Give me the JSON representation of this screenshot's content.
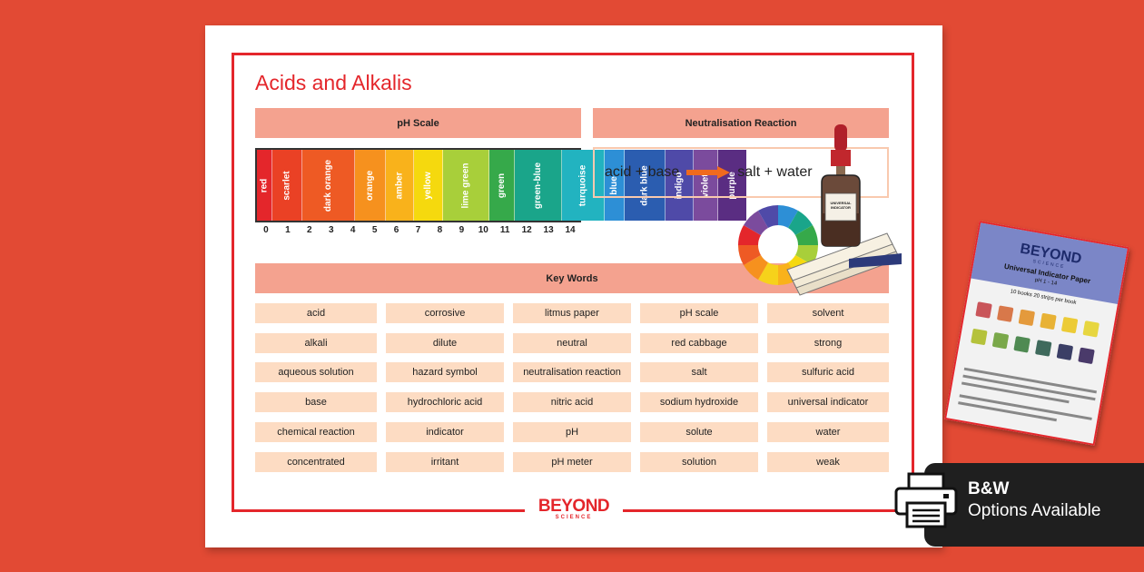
{
  "title": "Acids and Alkalis",
  "sections": {
    "ph_scale": "pH Scale",
    "neutralisation": "Neutralisation Reaction",
    "key_words": "Key Words"
  },
  "ph_scale": [
    {
      "label": "red",
      "num": "0",
      "color": "#e4262b"
    },
    {
      "label": "scarlet",
      "num": "1",
      "color": "#ea4125"
    },
    {
      "label": "dark orange",
      "num": "2",
      "color": "#ee5a24"
    },
    {
      "label": "orange",
      "num": "3",
      "color": "#f6911e"
    },
    {
      "label": "amber",
      "num": "4",
      "color": "#f9b21b"
    },
    {
      "label": "yellow",
      "num": "5",
      "color": "#f5d90e"
    },
    {
      "label": "lime green",
      "num": "6",
      "color": "#a8cf3a"
    },
    {
      "label": "green",
      "num": "7",
      "color": "#36a94a"
    },
    {
      "label": "green-blue",
      "num": "8",
      "color": "#1aa58a"
    },
    {
      "label": "turquoise",
      "num": "9",
      "color": "#22b3c0"
    },
    {
      "label": "blue",
      "num": "10",
      "color": "#2d8fd6"
    },
    {
      "label": "dark blue",
      "num": "11",
      "color": "#2b5db0"
    },
    {
      "label": "indigo",
      "num": "12",
      "color": "#4f4aa8"
    },
    {
      "label": "violet",
      "num": "13",
      "color": "#7b4b9d"
    },
    {
      "label": "purple",
      "num": "14",
      "color": "#5a2d82"
    }
  ],
  "reaction": {
    "left": "acid + base",
    "right": "salt + water"
  },
  "bottle_label": "UNIVERSAL INDICATOR",
  "key_words": [
    [
      "acid",
      "corrosive",
      "litmus paper",
      "pH scale",
      "solvent"
    ],
    [
      "alkali",
      "dilute",
      "neutral",
      "red cabbage",
      "strong"
    ],
    [
      "aqueous solution",
      "hazard symbol",
      "neutralisation reaction",
      "salt",
      "sulfuric acid"
    ],
    [
      "base",
      "hydrochloric acid",
      "nitric acid",
      "sodium hydroxide",
      "universal indicator"
    ],
    [
      "chemical reaction",
      "indicator",
      "pH",
      "solute",
      "water"
    ],
    [
      "concentrated",
      "irritant",
      "pH meter",
      "solution",
      "weak"
    ]
  ],
  "footer": {
    "brand": "BEYOND",
    "sub": "SCIENCE"
  },
  "badge": {
    "line1": "B&W",
    "line2": "Options Available"
  },
  "card": {
    "brand": "BEYOND",
    "brand_sub": "SCIENCE",
    "title": "Universal Indicator Paper",
    "range": "pH 1 - 14",
    "pack": "10 books 20 strips per book"
  },
  "colors": {
    "background": "#e24a34",
    "accent": "#e4262b",
    "band": "#f4a28f",
    "keyword_cell": "#fddcc3"
  }
}
